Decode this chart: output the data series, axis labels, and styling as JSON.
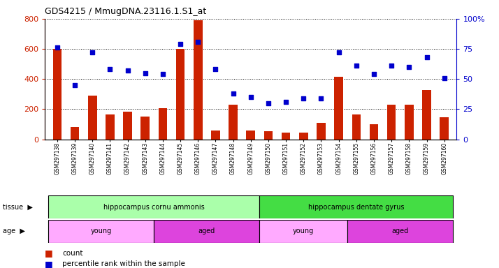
{
  "title": "GDS4215 / MmugDNA.23116.1.S1_at",
  "samples": [
    "GSM297138",
    "GSM297139",
    "GSM297140",
    "GSM297141",
    "GSM297142",
    "GSM297143",
    "GSM297144",
    "GSM297145",
    "GSM297146",
    "GSM297147",
    "GSM297148",
    "GSM297149",
    "GSM297150",
    "GSM297151",
    "GSM297152",
    "GSM297153",
    "GSM297154",
    "GSM297155",
    "GSM297156",
    "GSM297157",
    "GSM297158",
    "GSM297159",
    "GSM297160"
  ],
  "counts": [
    600,
    80,
    290,
    165,
    185,
    150,
    205,
    600,
    790,
    60,
    230,
    60,
    55,
    45,
    45,
    110,
    415,
    165,
    100,
    230,
    230,
    325,
    145
  ],
  "percentile": [
    76,
    45,
    72,
    58,
    57,
    55,
    54,
    79,
    81,
    58,
    38,
    35,
    30,
    31,
    34,
    34,
    72,
    61,
    54,
    61,
    60,
    68,
    51
  ],
  "bar_color": "#cc2200",
  "dot_color": "#0000cc",
  "bg_color": "#ffffff",
  "tissue_groups": [
    {
      "label": "hippocampus cornu ammonis",
      "start": 0,
      "end": 12,
      "color": "#aaffaa"
    },
    {
      "label": "hippocampus dentate gyrus",
      "start": 12,
      "end": 23,
      "color": "#44dd44"
    }
  ],
  "age_groups": [
    {
      "label": "young",
      "start": 0,
      "end": 6,
      "color": "#ffaaff"
    },
    {
      "label": "aged",
      "start": 6,
      "end": 12,
      "color": "#dd44dd"
    },
    {
      "label": "young",
      "start": 12,
      "end": 17,
      "color": "#ffaaff"
    },
    {
      "label": "aged",
      "start": 17,
      "end": 23,
      "color": "#dd44dd"
    }
  ]
}
